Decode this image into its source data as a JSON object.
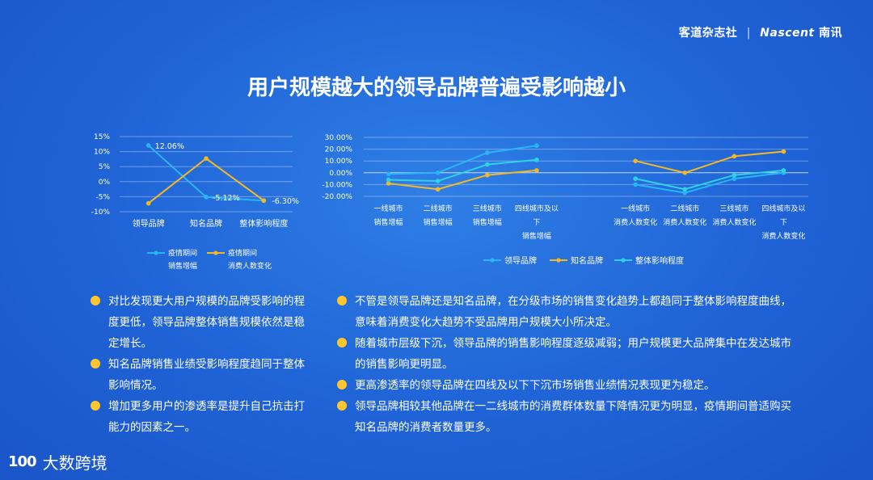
{
  "brand": {
    "cn": "客道杂志社",
    "sep": "|",
    "en": "Nascent",
    "en_cn": "南讯"
  },
  "title": "用户规模越大的领导品牌普遍受影响越小",
  "colors": {
    "lead": "#29b6f6",
    "known": "#f5b820",
    "overall": "#2ed3e0",
    "bullet": "#ffc72c"
  },
  "chart_data": [
    {
      "type": "line",
      "categories": [
        "领导品牌",
        "知名品牌",
        "整体影响程度"
      ],
      "ylim": [
        -0.1,
        0.15
      ],
      "yticks": [
        "15%",
        "10%",
        "5%",
        "0%",
        "-5%",
        "-10%"
      ],
      "series": [
        {
          "name_lines": [
            "疫情期间",
            "销售增幅"
          ],
          "values": [
            0.1206,
            -0.0512,
            -0.063
          ],
          "labels": [
            "12.06%",
            "-5.12%",
            "-6.30%"
          ]
        },
        {
          "name_lines": [
            "疫情期间",
            "消费人数变化"
          ],
          "values": [
            -0.072,
            0.077,
            -0.063
          ]
        }
      ]
    },
    {
      "type": "line",
      "categories": [
        [
          "一线城市",
          "销售增幅"
        ],
        [
          "二线城市",
          "销售增幅"
        ],
        [
          "三线城市",
          "销售增幅"
        ],
        [
          "四线城市及以",
          "下",
          "销售增幅"
        ],
        [
          "一线城市",
          "消费人数变化"
        ],
        [
          "二线城市",
          "消费人数变化"
        ],
        [
          "三线城市",
          "消费人数变化"
        ],
        [
          "四线城市及以",
          "下",
          "消费人数变化"
        ]
      ],
      "gap_after_index": 3,
      "ylim": [
        -0.2,
        0.3
      ],
      "yticks": [
        "30.00%",
        "20.00%",
        "10.00%",
        "0.00%",
        "-10.00%",
        "-20.00%"
      ],
      "series": [
        {
          "name": "领导品牌",
          "values": [
            -0.01,
            0.0,
            0.17,
            0.23,
            -0.1,
            -0.17,
            -0.05,
            0.0
          ]
        },
        {
          "name": "知名品牌",
          "values": [
            -0.09,
            -0.14,
            -0.02,
            0.02,
            0.1,
            0.0,
            0.14,
            0.18
          ]
        },
        {
          "name": "整体影响程度",
          "values": [
            -0.06,
            -0.07,
            0.07,
            0.11,
            -0.05,
            -0.14,
            -0.02,
            0.02
          ]
        }
      ]
    }
  ],
  "bullets_left": [
    "对比发现更大用户规模的品牌受影响的程度更低，领导品牌整体销售规模依然是稳定增长。",
    "知名品牌销售业绩受影响程度趋同于整体影响情况。",
    "增加更多用户的渗透率是提升自己抗击打能力的因素之一。"
  ],
  "bullets_right": [
    "不管是领导品牌还是知名品牌，在分级市场的销售变化趋势上都趋同于整体影响程度曲线，意味着消费变化大趋势不受品牌用户规模大小所决定。",
    "随着城市层级下沉，领导品牌的销售影响程度逐级减弱；用户规模更大品牌集中在发达城市的销售影响更明显。",
    "更高渗透率的领导品牌在四线及以下下沉市场销售业绩情况表现更为稳定。",
    "领导品牌相较其他品牌在一二线城市的消费群体数量下降情况更为明显，疫情期间普适购买知名品牌的消费者数量更多。"
  ],
  "footer": {
    "mark": "100",
    "text": "大数跨境"
  }
}
